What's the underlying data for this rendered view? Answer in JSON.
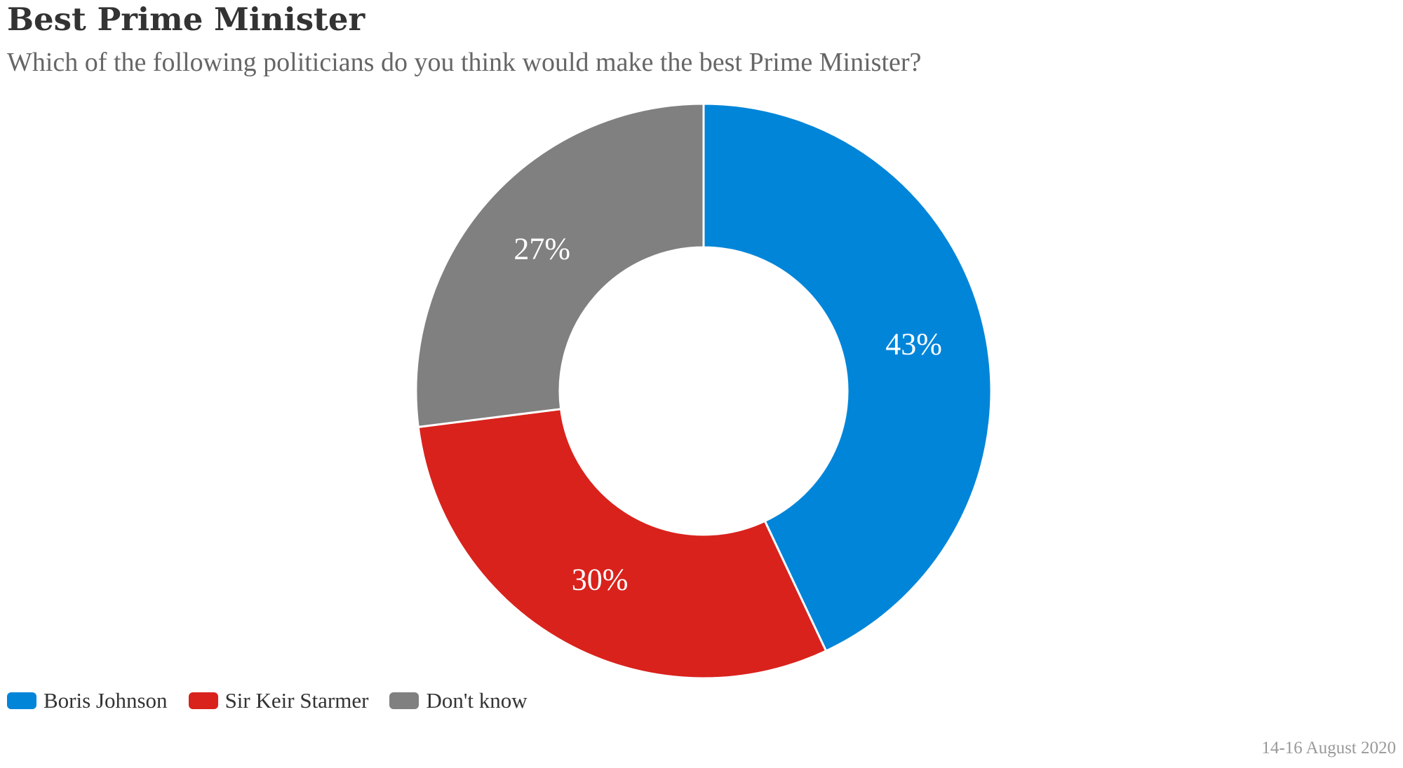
{
  "chart_data": {
    "type": "pie",
    "title": "Best Prime Minister",
    "subtitle": "Which of the following politicians do you think would make the best Prime Minister?",
    "categories": [
      "Boris Johnson",
      "Sir Keir Starmer",
      "Don't know"
    ],
    "values": [
      43,
      30,
      27
    ],
    "labels": [
      "43%",
      "30%",
      "27%"
    ],
    "colors": [
      "#0185d9",
      "#d9221c",
      "#808080"
    ],
    "donut": true,
    "legend_position": "bottom-left",
    "credit": "14-16 August 2020"
  }
}
